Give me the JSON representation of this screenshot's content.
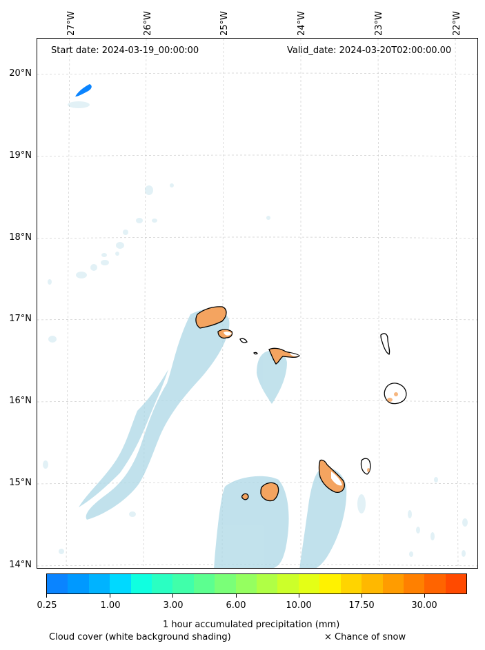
{
  "header": {
    "start_date": "Start date: 2024-03-19_00:00:00",
    "valid_date": "Valid_date: 2024-03-20T02:00:00.00"
  },
  "axes": {
    "longitudes": [
      "27°W",
      "26°W",
      "25°W",
      "24°W",
      "23°W",
      "22°W"
    ],
    "latitudes": [
      "20°N",
      "19°N",
      "18°N",
      "17°N",
      "16°N",
      "15°N",
      "14°N"
    ]
  },
  "colorbar": {
    "colors": [
      "#0a84ff",
      "#0099ff",
      "#00b3ff",
      "#00d9ff",
      "#10ffe0",
      "#2affc2",
      "#40ffaa",
      "#5cff90",
      "#7aff78",
      "#95ff60",
      "#b0ff45",
      "#ccff2a",
      "#e4ff16",
      "#fff200",
      "#ffd400",
      "#ffb800",
      "#ff9c00",
      "#ff8000",
      "#ff6400",
      "#ff4a00"
    ],
    "tick_labels": [
      "0.25",
      "1.00",
      "3.00",
      "6.00",
      "10.00",
      "17.50",
      "30.00"
    ],
    "title": "1 hour accumulated precipitation (mm)"
  },
  "legend": {
    "cloud_cover": "Cloud cover (white background shading)",
    "snow": "× Chance of snow"
  },
  "map_colors": {
    "cloud": "#add8e6",
    "precip_light_blue": "#0a84ff",
    "precip_orange": "#f4a460",
    "coastline": "#000000",
    "grid": "#cccccc"
  }
}
